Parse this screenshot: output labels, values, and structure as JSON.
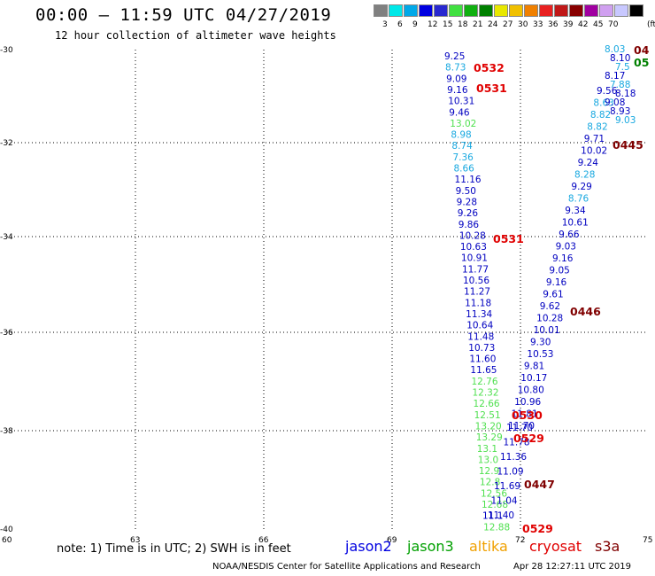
{
  "header": {
    "title": "00:00 – 11:59 UTC 04/27/2019",
    "subtitle": "12 hour collection of altimeter wave heights"
  },
  "legend": {
    "colors": [
      "#808080",
      "#00e8e8",
      "#00a8e8",
      "#0000e0",
      "#2828d0",
      "#40e040",
      "#10b010",
      "#008000",
      "#e8e800",
      "#f0c000",
      "#f08000",
      "#e82020",
      "#c01818",
      "#880000",
      "#a000a0",
      "#d0a0f0",
      "#c8c8ff",
      "#000000"
    ],
    "labels": [
      "3",
      "6",
      "9",
      "12",
      "15",
      "18",
      "21",
      "24",
      "27",
      "30",
      "33",
      "36",
      "39",
      "42",
      "45",
      "70"
    ],
    "unit": "(ft)"
  },
  "axes": {
    "lat_labels": [
      "-30",
      "-32",
      "-34",
      "-36",
      "-38",
      "-40"
    ],
    "lon_labels": [
      "60",
      "63",
      "66",
      "69",
      "72",
      "75"
    ]
  },
  "colors": {
    "blue": "#0000c0",
    "cyan": "#18a8e0",
    "green": "#50e050",
    "dark_green": "#008000",
    "red": "#e00000",
    "maroon": "#800000"
  },
  "tracks": {
    "left_track": [
      [
        "9.25",
        "blue"
      ],
      [
        "8.73",
        "cyan"
      ],
      [
        "9.09",
        "blue"
      ],
      [
        "9.16",
        "blue"
      ],
      [
        "10.31",
        "blue"
      ],
      [
        "9.46",
        "blue"
      ],
      [
        "13.02",
        "green"
      ],
      [
        "8.98",
        "cyan"
      ],
      [
        "8.74",
        "cyan"
      ],
      [
        "7.36",
        "cyan"
      ],
      [
        "8.66",
        "cyan"
      ],
      [
        "11.16",
        "blue"
      ],
      [
        "9.50",
        "blue"
      ],
      [
        "9.28",
        "blue"
      ],
      [
        "9.26",
        "blue"
      ],
      [
        "9.86",
        "blue"
      ],
      [
        "10.28",
        "blue"
      ],
      [
        "10.63",
        "blue"
      ],
      [
        "10.91",
        "blue"
      ],
      [
        "11.77",
        "blue"
      ],
      [
        "10.56",
        "blue"
      ],
      [
        "11.27",
        "blue"
      ],
      [
        "11.18",
        "blue"
      ],
      [
        "11.34",
        "blue"
      ],
      [
        "10.64",
        "blue"
      ],
      [
        "11.48",
        "blue"
      ],
      [
        "10.73",
        "blue"
      ],
      [
        "11.60",
        "blue"
      ],
      [
        "11.65",
        "blue"
      ],
      [
        "12.76",
        "green"
      ],
      [
        "12.32",
        "green"
      ],
      [
        "12.66",
        "green"
      ],
      [
        "12.51",
        "green"
      ],
      [
        "13.20",
        "green"
      ],
      [
        "13.29",
        "green"
      ],
      [
        "13.1",
        "green"
      ],
      [
        "13.0",
        "green"
      ],
      [
        "12.9",
        "green"
      ],
      [
        "12.8",
        "green"
      ],
      [
        "12.56",
        "green"
      ],
      [
        "12.68",
        "green"
      ],
      [
        "11.1",
        "blue"
      ],
      [
        "12.88",
        "green"
      ]
    ],
    "right_track": [
      [
        "11.70",
        "blue"
      ],
      [
        "11.78",
        "blue"
      ],
      [
        "11.36",
        "blue"
      ],
      [
        "11.09",
        "blue"
      ],
      [
        "11.69",
        "blue"
      ],
      [
        "11.04",
        "blue"
      ],
      [
        "11.40",
        "blue"
      ]
    ],
    "rising_track": [
      [
        "9.56",
        "blue"
      ],
      [
        "8.63",
        "cyan"
      ],
      [
        "8.82",
        "cyan"
      ],
      [
        "8.82",
        "cyan"
      ],
      [
        "9.71",
        "blue"
      ],
      [
        "10.02",
        "blue"
      ],
      [
        "9.24",
        "blue"
      ],
      [
        "8.28",
        "cyan"
      ],
      [
        "9.29",
        "blue"
      ],
      [
        "8.76",
        "cyan"
      ],
      [
        "9.34",
        "blue"
      ],
      [
        "10.61",
        "blue"
      ],
      [
        "9.66",
        "blue"
      ],
      [
        "9.03",
        "blue"
      ],
      [
        "9.16",
        "blue"
      ],
      [
        "9.05",
        "blue"
      ],
      [
        "9.16",
        "blue"
      ],
      [
        "9.61",
        "blue"
      ],
      [
        "9.62",
        "blue"
      ],
      [
        "10.28",
        "blue"
      ],
      [
        "10.01",
        "blue"
      ],
      [
        "9.30",
        "blue"
      ],
      [
        "10.53",
        "blue"
      ],
      [
        "9.81",
        "blue"
      ],
      [
        "10.17",
        "blue"
      ],
      [
        "10.80",
        "blue"
      ],
      [
        "10.96",
        "blue"
      ],
      [
        "11.81",
        "blue"
      ],
      [
        "11.70",
        "blue"
      ]
    ],
    "top_right_values": [
      [
        "8.03",
        "cyan"
      ],
      [
        "8.10",
        "blue"
      ],
      [
        "7.5",
        "cyan"
      ],
      [
        "8.17",
        "blue"
      ],
      [
        "7.88",
        "cyan"
      ],
      [
        "8.18",
        "blue"
      ],
      [
        "9.08",
        "blue"
      ],
      [
        "8.93",
        "blue"
      ],
      [
        "9.03",
        "cyan"
      ]
    ]
  },
  "time_labels": [
    {
      "text": "0532",
      "color": "red"
    },
    {
      "text": "0531",
      "color": "red"
    },
    {
      "text": "0445",
      "color": "maroon"
    },
    {
      "text": "0531",
      "color": "red"
    },
    {
      "text": "0446",
      "color": "maroon"
    },
    {
      "text": "0530",
      "color": "red"
    },
    {
      "text": "0529",
      "color": "red"
    },
    {
      "text": "0447",
      "color": "maroon"
    },
    {
      "text": "0529",
      "color": "red"
    },
    {
      "text": "04",
      "color": "maroon"
    },
    {
      "text": "05",
      "color": "dark_green"
    }
  ],
  "footer": {
    "note": "note: 1) Time is in UTC; 2) SWH is in feet",
    "satellites": [
      {
        "name": "jason2",
        "color": "#0000e0"
      },
      {
        "name": "jason3",
        "color": "#00a000"
      },
      {
        "name": "altika",
        "color": "#f0a000"
      },
      {
        "name": "cryosat",
        "color": "#e00000"
      },
      {
        "name": "s3a",
        "color": "#800000"
      }
    ],
    "credit": "NOAA/NESDIS Center for Satellite Applications and Research",
    "timestamp": "Apr 28 12:27:11 UTC 2019"
  }
}
